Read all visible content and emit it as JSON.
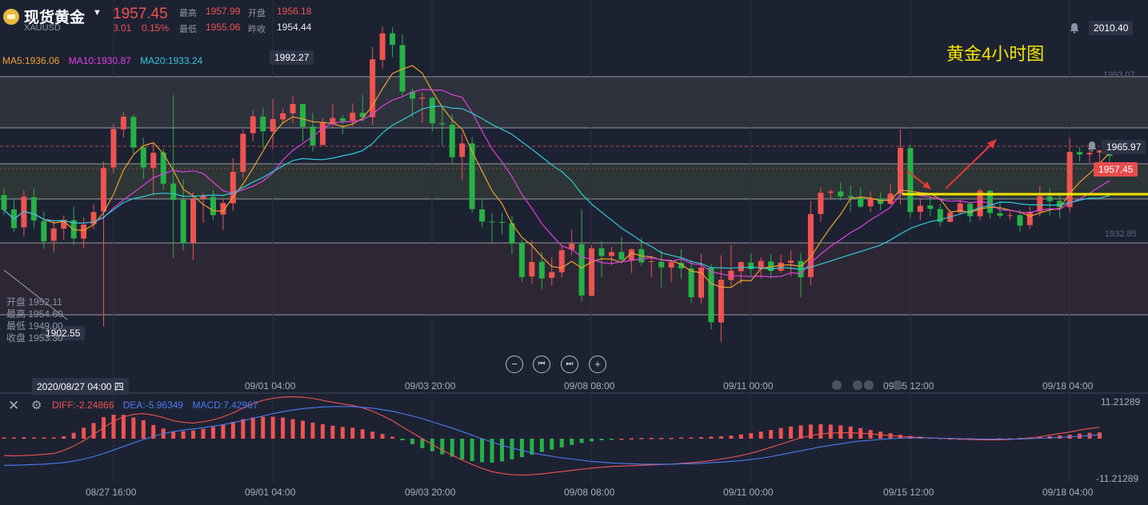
{
  "header": {
    "name": "现货黄金",
    "symbol": "XAUUSD",
    "price": "1957.45",
    "change": "3.01",
    "change_pct": "0.15%",
    "high_label": "最高",
    "high": "1957.99",
    "open_label": "开盘",
    "open": "1956.18",
    "low_label": "最低",
    "low": "1955.06",
    "prev_close_label": "昨收",
    "prev_close": "1954.44"
  },
  "chart_title": "黄金4小时图",
  "ma_legend": {
    "ma5": "MA5:1936.06",
    "ma10": "MA10:1930.87",
    "ma20": "MA20:1933.24"
  },
  "price_tags": {
    "top": "2010.40",
    "alert": "1965.97",
    "current": "1957.45",
    "peak": "1992.27",
    "trough": "1902.55"
  },
  "axis_levels": {
    "upper": "1993.07",
    "lower": "1932.85"
  },
  "ohlc_tooltip": {
    "open": "开盘 1952.11",
    "high": "最高 1954.60",
    "low": "最低 1949.00",
    "close": "收盘 1953.30"
  },
  "crosshair_date": "2020/08/27 04:00 四",
  "x_ticks": [
    "09/01 04:00",
    "09/03 20:00",
    "09/08 08:00",
    "09/11 00:00",
    "09/15 12:00",
    "09/18 04:00"
  ],
  "macd_x_ticks": [
    "08/27 16:00",
    "09/01 04:00",
    "09/03 20:00",
    "09/08 08:00",
    "09/11 00:00",
    "09/15 12:00",
    "09/18 04:00"
  ],
  "macd_legend": {
    "diff": "DIFF:-2.24866",
    "dea": "DEA:-5.96349",
    "macd": "MACD:7.42967"
  },
  "macd_axis": {
    "top": "11.21289",
    "bottom": "-11.21289"
  },
  "nav": {
    "zoom_out": "−",
    "prev": "⏮",
    "next": "⏭",
    "zoom_in": "+"
  },
  "colors": {
    "up": "#ef5350",
    "down": "#26b246",
    "ma5": "#f0a030",
    "ma10": "#e040e0",
    "ma20": "#30c8d8",
    "diff": "#ef5350",
    "dea": "#4a7df0",
    "highlight": "#f5e500"
  },
  "chart_data": [
    {
      "type": "candlestick",
      "title": "黄金4小时图",
      "y_levels": [
        1993.07,
        1965.97,
        1957.45,
        1932.85
      ],
      "ylim": [
        1890,
        2010.4
      ],
      "moving_averages": [
        "MA5",
        "MA10",
        "MA20"
      ],
      "candles": [
        {
          "o": 1950.2,
          "h": 1952.5,
          "l": 1943.1,
          "c": 1944.8
        },
        {
          "o": 1945.0,
          "h": 1948.6,
          "l": 1936.9,
          "c": 1938.2
        },
        {
          "o": 1938.5,
          "h": 1951.8,
          "l": 1935.2,
          "c": 1949.6
        },
        {
          "o": 1949.4,
          "h": 1952.7,
          "l": 1938.1,
          "c": 1941.0
        },
        {
          "o": 1940.8,
          "h": 1944.2,
          "l": 1930.7,
          "c": 1933.4
        },
        {
          "o": 1933.6,
          "h": 1940.9,
          "l": 1929.4,
          "c": 1938.1
        },
        {
          "o": 1938.0,
          "h": 1942.8,
          "l": 1934.0,
          "c": 1941.2
        },
        {
          "o": 1941.1,
          "h": 1946.0,
          "l": 1932.0,
          "c": 1934.5
        },
        {
          "o": 1934.4,
          "h": 1942.0,
          "l": 1931.0,
          "c": 1939.5
        },
        {
          "o": 1939.6,
          "h": 1947.0,
          "l": 1937.8,
          "c": 1944.0
        },
        {
          "o": 1944.2,
          "h": 1962.3,
          "l": 1902.6,
          "c": 1960.0
        },
        {
          "o": 1960.2,
          "h": 1976.0,
          "l": 1958.0,
          "c": 1974.1
        },
        {
          "o": 1974.0,
          "h": 1980.2,
          "l": 1971.0,
          "c": 1978.6
        },
        {
          "o": 1978.5,
          "h": 1979.4,
          "l": 1965.1,
          "c": 1967.4
        },
        {
          "o": 1967.5,
          "h": 1971.0,
          "l": 1956.0,
          "c": 1960.2
        },
        {
          "o": 1960.0,
          "h": 1969.2,
          "l": 1950.0,
          "c": 1965.5
        },
        {
          "o": 1965.6,
          "h": 1967.0,
          "l": 1952.1,
          "c": 1954.3
        },
        {
          "o": 1954.4,
          "h": 1986.4,
          "l": 1927.4,
          "c": 1948.4
        },
        {
          "o": 1948.5,
          "h": 1956.0,
          "l": 1930.2,
          "c": 1932.8
        },
        {
          "o": 1932.9,
          "h": 1951.3,
          "l": 1926.7,
          "c": 1948.7
        },
        {
          "o": 1948.8,
          "h": 1951.0,
          "l": 1940.1,
          "c": 1949.8
        },
        {
          "o": 1949.5,
          "h": 1952.0,
          "l": 1941.2,
          "c": 1942.9
        },
        {
          "o": 1943.1,
          "h": 1949.0,
          "l": 1937.5,
          "c": 1947.3
        },
        {
          "o": 1947.2,
          "h": 1963.5,
          "l": 1944.6,
          "c": 1958.6
        },
        {
          "o": 1958.6,
          "h": 1974.0,
          "l": 1956.2,
          "c": 1972.4
        },
        {
          "o": 1972.6,
          "h": 1981.0,
          "l": 1969.8,
          "c": 1978.7
        },
        {
          "o": 1978.6,
          "h": 1981.8,
          "l": 1967.1,
          "c": 1973.3
        },
        {
          "o": 1973.2,
          "h": 1985.0,
          "l": 1966.9,
          "c": 1977.7
        },
        {
          "o": 1977.6,
          "h": 1981.5,
          "l": 1976.0,
          "c": 1979.8
        },
        {
          "o": 1979.8,
          "h": 1986.1,
          "l": 1976.3,
          "c": 1983.2
        },
        {
          "o": 1983.2,
          "h": 1983.2,
          "l": 1969.7,
          "c": 1974.9
        },
        {
          "o": 1975.0,
          "h": 1980.0,
          "l": 1966.0,
          "c": 1968.2
        },
        {
          "o": 1968.3,
          "h": 1978.0,
          "l": 1968.3,
          "c": 1976.4
        },
        {
          "o": 1976.3,
          "h": 1983.2,
          "l": 1974.4,
          "c": 1978.1
        },
        {
          "o": 1978.0,
          "h": 1979.4,
          "l": 1972.2,
          "c": 1977.0
        },
        {
          "o": 1977.2,
          "h": 1983.4,
          "l": 1975.0,
          "c": 1980.0
        },
        {
          "o": 1980.0,
          "h": 1986.4,
          "l": 1976.8,
          "c": 1978.4
        },
        {
          "o": 1978.4,
          "h": 2003.8,
          "l": 1975.5,
          "c": 1999.4
        },
        {
          "o": 1999.2,
          "h": 2011.2,
          "l": 1996.1,
          "c": 2008.8
        },
        {
          "o": 2008.8,
          "h": 2011.0,
          "l": 2000.3,
          "c": 2004.6
        },
        {
          "o": 2004.5,
          "h": 2008.4,
          "l": 1986.2,
          "c": 1987.7
        },
        {
          "o": 1987.6,
          "h": 1988.8,
          "l": 1978.3,
          "c": 1985.1
        },
        {
          "o": 1985.1,
          "h": 1987.4,
          "l": 1976.4,
          "c": 1985.5
        },
        {
          "o": 1985.4,
          "h": 1986.0,
          "l": 1973.3,
          "c": 1976.2
        },
        {
          "o": 1976.2,
          "h": 1982.1,
          "l": 1968.1,
          "c": 1975.8
        },
        {
          "o": 1975.7,
          "h": 1979.5,
          "l": 1961.7,
          "c": 1963.9
        },
        {
          "o": 1964.0,
          "h": 1972.4,
          "l": 1955.6,
          "c": 1968.9
        },
        {
          "o": 1968.9,
          "h": 1971.2,
          "l": 1943.8,
          "c": 1945.1
        },
        {
          "o": 1945.0,
          "h": 1948.7,
          "l": 1938.5,
          "c": 1940.6
        },
        {
          "o": 1940.6,
          "h": 1943.8,
          "l": 1932.6,
          "c": 1940.4
        },
        {
          "o": 1940.4,
          "h": 1943.7,
          "l": 1935.9,
          "c": 1940.2
        },
        {
          "o": 1940.0,
          "h": 1942.6,
          "l": 1928.7,
          "c": 1932.6
        },
        {
          "o": 1932.9,
          "h": 1934.0,
          "l": 1918.7,
          "c": 1920.5
        },
        {
          "o": 1920.7,
          "h": 1933.8,
          "l": 1918.1,
          "c": 1925.9
        },
        {
          "o": 1926.0,
          "h": 1929.6,
          "l": 1916.1,
          "c": 1920.0
        },
        {
          "o": 1920.2,
          "h": 1927.6,
          "l": 1917.4,
          "c": 1922.3
        },
        {
          "o": 1922.2,
          "h": 1931.8,
          "l": 1920.3,
          "c": 1930.2
        },
        {
          "o": 1930.4,
          "h": 1937.6,
          "l": 1928.5,
          "c": 1932.6
        },
        {
          "o": 1932.4,
          "h": 1945.1,
          "l": 1911.7,
          "c": 1913.8
        },
        {
          "o": 1913.7,
          "h": 1932.0,
          "l": 1913.6,
          "c": 1930.9
        },
        {
          "o": 1930.9,
          "h": 1933.5,
          "l": 1920.4,
          "c": 1928.1
        },
        {
          "o": 1928.1,
          "h": 1931.4,
          "l": 1924.7,
          "c": 1929.5
        },
        {
          "o": 1929.6,
          "h": 1934.9,
          "l": 1925.4,
          "c": 1926.8
        },
        {
          "o": 1926.7,
          "h": 1930.8,
          "l": 1922.0,
          "c": 1930.5
        },
        {
          "o": 1930.6,
          "h": 1934.7,
          "l": 1924.6,
          "c": 1925.8
        },
        {
          "o": 1925.9,
          "h": 1928.1,
          "l": 1920.4,
          "c": 1926.2
        },
        {
          "o": 1926.0,
          "h": 1930.2,
          "l": 1916.7,
          "c": 1924.0
        },
        {
          "o": 1923.9,
          "h": 1926.7,
          "l": 1918.8,
          "c": 1925.8
        },
        {
          "o": 1925.6,
          "h": 1930.5,
          "l": 1919.9,
          "c": 1923.6
        },
        {
          "o": 1923.6,
          "h": 1926.7,
          "l": 1911.1,
          "c": 1913.2
        },
        {
          "o": 1913.0,
          "h": 1928.9,
          "l": 1910.9,
          "c": 1923.9
        },
        {
          "o": 1923.9,
          "h": 1925.2,
          "l": 1901.5,
          "c": 1904.1
        },
        {
          "o": 1904.0,
          "h": 1928.4,
          "l": 1897.0,
          "c": 1919.5
        },
        {
          "o": 1919.4,
          "h": 1932.0,
          "l": 1917.0,
          "c": 1922.8
        },
        {
          "o": 1922.6,
          "h": 1926.2,
          "l": 1918.0,
          "c": 1925.9
        },
        {
          "o": 1925.7,
          "h": 1929.0,
          "l": 1920.8,
          "c": 1923.3
        },
        {
          "o": 1923.4,
          "h": 1927.6,
          "l": 1920.0,
          "c": 1926.3
        },
        {
          "o": 1926.1,
          "h": 1928.8,
          "l": 1919.8,
          "c": 1922.7
        },
        {
          "o": 1922.8,
          "h": 1928.5,
          "l": 1922.0,
          "c": 1925.7
        },
        {
          "o": 1925.6,
          "h": 1930.2,
          "l": 1920.8,
          "c": 1926.4
        },
        {
          "o": 1926.3,
          "h": 1929.3,
          "l": 1913.2,
          "c": 1920.4
        },
        {
          "o": 1920.5,
          "h": 1948.1,
          "l": 1917.6,
          "c": 1943.3
        },
        {
          "o": 1943.3,
          "h": 1953.0,
          "l": 1940.4,
          "c": 1951.0
        },
        {
          "o": 1951.0,
          "h": 1952.3,
          "l": 1948.8,
          "c": 1951.5
        },
        {
          "o": 1951.5,
          "h": 1954.8,
          "l": 1948.3,
          "c": 1949.7
        },
        {
          "o": 1949.8,
          "h": 1953.6,
          "l": 1944.3,
          "c": 1949.2
        },
        {
          "o": 1949.3,
          "h": 1953.0,
          "l": 1945.4,
          "c": 1946.0
        },
        {
          "o": 1946.1,
          "h": 1951.5,
          "l": 1944.0,
          "c": 1948.9
        },
        {
          "o": 1948.9,
          "h": 1951.0,
          "l": 1944.7,
          "c": 1947.0
        },
        {
          "o": 1947.0,
          "h": 1954.2,
          "l": 1946.6,
          "c": 1950.7
        },
        {
          "o": 1950.7,
          "h": 1974.0,
          "l": 1946.8,
          "c": 1967.3
        },
        {
          "o": 1967.2,
          "h": 1968.5,
          "l": 1942.0,
          "c": 1944.0
        },
        {
          "o": 1944.1,
          "h": 1949.0,
          "l": 1941.1,
          "c": 1946.3
        },
        {
          "o": 1946.4,
          "h": 1949.8,
          "l": 1942.6,
          "c": 1945.2
        },
        {
          "o": 1945.1,
          "h": 1947.0,
          "l": 1938.9,
          "c": 1940.5
        },
        {
          "o": 1940.5,
          "h": 1945.0,
          "l": 1940.3,
          "c": 1943.8
        },
        {
          "o": 1943.9,
          "h": 1948.8,
          "l": 1943.4,
          "c": 1947.2
        },
        {
          "o": 1947.1,
          "h": 1947.5,
          "l": 1940.3,
          "c": 1942.5
        },
        {
          "o": 1942.5,
          "h": 1952.6,
          "l": 1941.0,
          "c": 1951.8
        },
        {
          "o": 1951.8,
          "h": 1952.0,
          "l": 1941.8,
          "c": 1943.7
        },
        {
          "o": 1943.6,
          "h": 1948.0,
          "l": 1941.7,
          "c": 1942.7
        },
        {
          "o": 1942.6,
          "h": 1944.3,
          "l": 1941.1,
          "c": 1942.9
        },
        {
          "o": 1942.9,
          "h": 1945.0,
          "l": 1936.8,
          "c": 1939.1
        },
        {
          "o": 1939.3,
          "h": 1945.9,
          "l": 1937.9,
          "c": 1944.1
        },
        {
          "o": 1944.2,
          "h": 1953.5,
          "l": 1942.5,
          "c": 1949.8
        },
        {
          "o": 1949.7,
          "h": 1952.7,
          "l": 1942.8,
          "c": 1948.0
        },
        {
          "o": 1948.1,
          "h": 1951.1,
          "l": 1941.9,
          "c": 1945.9
        },
        {
          "o": 1945.8,
          "h": 1970.8,
          "l": 1943.9,
          "c": 1965.8
        },
        {
          "o": 1965.8,
          "h": 1967.6,
          "l": 1962.3,
          "c": 1964.9
        },
        {
          "o": 1964.9,
          "h": 1967.7,
          "l": 1961.9,
          "c": 1965.5
        },
        {
          "o": 1965.6,
          "h": 1966.8,
          "l": 1960.6,
          "c": 1966.3
        },
        {
          "o": 1966.4,
          "h": 1967.2,
          "l": 1961.0,
          "c": 1964.4
        }
      ]
    },
    {
      "type": "bar",
      "title": "MACD",
      "series": [
        {
          "name": "DIFF",
          "type": "line"
        },
        {
          "name": "DEA",
          "type": "line"
        },
        {
          "name": "MACD",
          "type": "bar"
        }
      ],
      "ylim": [
        -11.21289,
        11.21289
      ],
      "macd_values": [
        0.3,
        0.3,
        0.4,
        0.3,
        0.3,
        0.3,
        0.6,
        1.5,
        2.8,
        4.0,
        5.5,
        6.1,
        6.1,
        5.4,
        4.7,
        3.5,
        2.6,
        1.8,
        1.9,
        2.1,
        2.5,
        3.0,
        3.6,
        4.3,
        5.0,
        5.4,
        5.6,
        5.6,
        5.4,
        5.0,
        4.6,
        4.1,
        3.7,
        3.3,
        3.0,
        2.8,
        2.4,
        1.8,
        1.2,
        0.5,
        -0.4,
        -1.4,
        -2.4,
        -3.2,
        -4.0,
        -4.6,
        -5.3,
        -5.7,
        -6.0,
        -6.1,
        -5.8,
        -5.3,
        -4.7,
        -4.1,
        -3.4,
        -2.8,
        -2.2,
        -1.6,
        -1.1,
        -0.7,
        -0.4,
        -0.2,
        0.0,
        0.1,
        0.2,
        0.2,
        0.2,
        0.2,
        0.3,
        0.3,
        0.4,
        0.5,
        0.6,
        0.8,
        1.1,
        1.4,
        1.8,
        2.2,
        2.7,
        3.1,
        3.4,
        3.6,
        3.7,
        3.6,
        3.4,
        3.1,
        2.7,
        2.2,
        1.8,
        1.4,
        1.0,
        0.7,
        0.5,
        0.3,
        0.2,
        0.1,
        0.0,
        -0.1,
        -0.1,
        0.0,
        0.1,
        0.1,
        0.2,
        0.3,
        0.4,
        0.6,
        0.8,
        1.0,
        1.3,
        1.5,
        1.6
      ],
      "diff_values": [
        -4.3,
        -4.4,
        -4.3,
        -4.2,
        -4.0,
        -3.8,
        -3.0,
        -1.9,
        -0.5,
        1.1,
        2.8,
        4.4,
        5.6,
        6.2,
        6.4,
        6.0,
        5.4,
        4.6,
        4.2,
        4.0,
        4.3,
        4.8,
        5.6,
        6.6,
        7.8,
        8.9,
        9.8,
        10.3,
        10.6,
        10.7,
        10.6,
        10.3,
        9.8,
        9.3,
        8.9,
        8.5,
        7.9,
        7.0,
        5.9,
        4.6,
        3.0,
        1.5,
        0.0,
        -1.5,
        -2.9,
        -4.2,
        -5.5,
        -6.6,
        -7.6,
        -8.4,
        -8.9,
        -9.2,
        -9.3,
        -9.2,
        -9.0,
        -8.7,
        -8.4,
        -8.1,
        -7.8,
        -7.5,
        -7.3,
        -7.1,
        -7.0,
        -6.9,
        -6.8,
        -6.7,
        -6.6,
        -6.5,
        -6.3,
        -6.1,
        -5.9,
        -5.6,
        -5.2,
        -4.8,
        -4.3,
        -3.7,
        -3.0,
        -2.2,
        -1.4,
        -0.6,
        0.2,
        0.8,
        1.2,
        1.4,
        1.5,
        1.5,
        1.4,
        1.2,
        1.0,
        0.8,
        0.6,
        0.4,
        0.3,
        0.2,
        0.1,
        0.0,
        -0.1,
        -0.2,
        -0.3,
        -0.3,
        -0.3,
        -0.2,
        0.0,
        0.2,
        0.5,
        0.9,
        1.3,
        1.7,
        2.2,
        2.6,
        2.9
      ],
      "dea_values": [
        -6.8,
        -6.8,
        -6.7,
        -6.6,
        -6.5,
        -6.3,
        -6.1,
        -5.7,
        -5.2,
        -4.6,
        -3.8,
        -2.9,
        -2.0,
        -1.1,
        -0.2,
        0.6,
        1.3,
        1.8,
        2.2,
        2.5,
        2.8,
        3.2,
        3.6,
        4.1,
        4.6,
        5.2,
        5.8,
        6.4,
        6.9,
        7.3,
        7.7,
        7.9,
        8.1,
        8.2,
        8.2,
        8.2,
        8.0,
        7.8,
        7.4,
        7.0,
        6.4,
        5.8,
        5.1,
        4.3,
        3.5,
        2.7,
        1.8,
        0.9,
        0.0,
        -0.9,
        -1.7,
        -2.4,
        -3.0,
        -3.6,
        -4.1,
        -4.5,
        -4.9,
        -5.2,
        -5.5,
        -5.8,
        -6.0,
        -6.2,
        -6.3,
        -6.4,
        -6.5,
        -6.5,
        -6.5,
        -6.5,
        -6.4,
        -6.4,
        -6.3,
        -6.1,
        -6.0,
        -5.8,
        -5.6,
        -5.3,
        -5.0,
        -4.6,
        -4.1,
        -3.6,
        -3.1,
        -2.6,
        -2.1,
        -1.7,
        -1.3,
        -0.9,
        -0.6,
        -0.4,
        -0.2,
        0.0,
        0.1,
        0.2,
        0.2,
        0.2,
        0.1,
        0.1,
        0.0,
        0.0,
        -0.1,
        -0.1,
        -0.1,
        -0.1,
        -0.1,
        0.0,
        0.1,
        0.2,
        0.3,
        0.5,
        0.6,
        0.8,
        1.0
      ]
    }
  ]
}
